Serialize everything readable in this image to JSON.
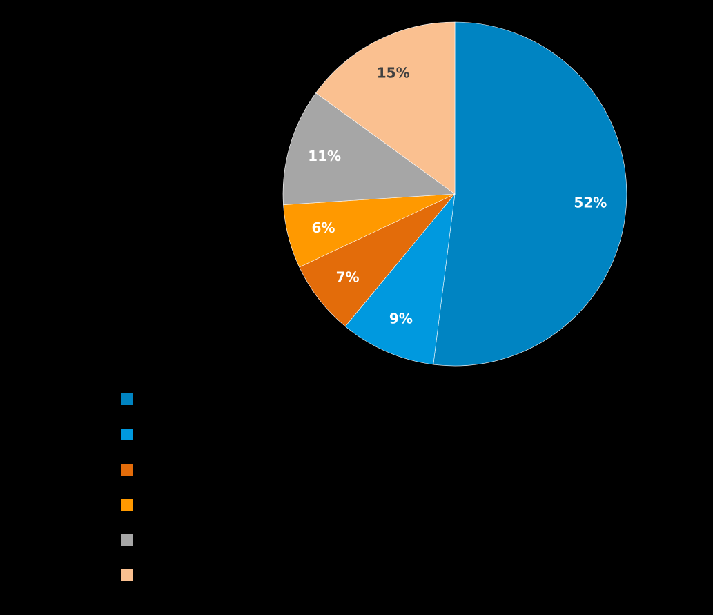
{
  "chart_data": {
    "type": "pie",
    "title": "",
    "start_angle_deg": 0,
    "direction": "clockwise",
    "slices": [
      {
        "label": "",
        "value": 52,
        "display": "52%",
        "color": "#0084C2",
        "label_color": "#FFFFFF"
      },
      {
        "label": "",
        "value": 9,
        "display": "9%",
        "color": "#0099DF",
        "label_color": "#FFFFFF"
      },
      {
        "label": "",
        "value": 7,
        "display": "7%",
        "color": "#E36C0A",
        "label_color": "#FFFFFF"
      },
      {
        "label": "",
        "value": 6,
        "display": "6%",
        "color": "#FF9900",
        "label_color": "#FFFFFF"
      },
      {
        "label": "",
        "value": 11,
        "display": "11%",
        "color": "#A6A6A6",
        "label_color": "#FFFFFF"
      },
      {
        "label": "",
        "value": 15,
        "display": "15%",
        "color": "#FAC090",
        "label_color": "#404040"
      }
    ],
    "legend": {
      "position": "bottom-left",
      "entries": [
        {
          "color": "#0084C2",
          "text": ""
        },
        {
          "color": "#0099DF",
          "text": ""
        },
        {
          "color": "#E36C0A",
          "text": ""
        },
        {
          "color": "#FF9900",
          "text": ""
        },
        {
          "color": "#A6A6A6",
          "text": ""
        },
        {
          "color": "#FAC090",
          "text": ""
        }
      ]
    },
    "background": "#000000"
  }
}
